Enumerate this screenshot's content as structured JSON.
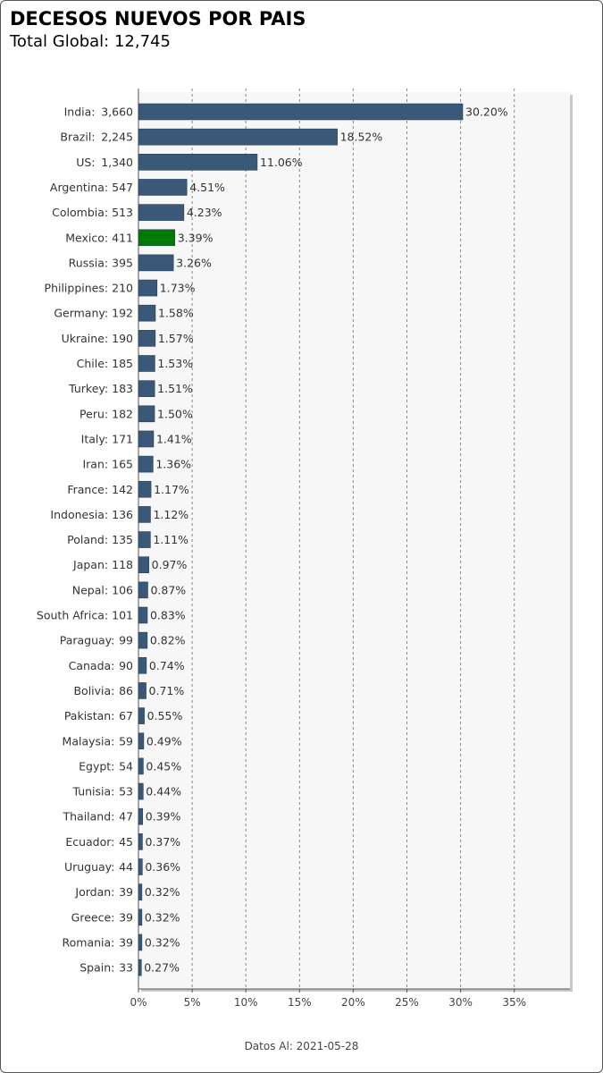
{
  "header": {
    "title": "DECESOS NUEVOS POR PAIS",
    "subtitle": "Total Global: 12,745"
  },
  "footer": {
    "text": "Datos Al: 2021-05-28"
  },
  "colors": {
    "bar": "#3a5878",
    "highlight": "#007a00",
    "plot_background": "#f7f7f7",
    "grid": "#888888"
  },
  "chart_data": {
    "type": "bar",
    "orientation": "horizontal",
    "highlight_category": "Mexico",
    "categories": [
      "India",
      "Brazil",
      "US",
      "Argentina",
      "Colombia",
      "Mexico",
      "Russia",
      "Philippines",
      "Germany",
      "Ukraine",
      "Chile",
      "Turkey",
      "Peru",
      "Italy",
      "Iran",
      "France",
      "Indonesia",
      "Poland",
      "Japan",
      "Nepal",
      "South Africa",
      "Paraguay",
      "Canada",
      "Bolivia",
      "Pakistan",
      "Malaysia",
      "Egypt",
      "Tunisia",
      "Thailand",
      "Ecuador",
      "Uruguay",
      "Jordan",
      "Greece",
      "Romania",
      "Spain"
    ],
    "category_labels": [
      "India:",
      "Brazil:",
      "US:",
      "Argentina:",
      "Colombia:",
      "Mexico:",
      "Russia:",
      "Philippines:",
      "Germany:",
      "Ukraine:",
      "Chile:",
      "Turkey:",
      "Peru:",
      "Italy:",
      "Iran:",
      "France:",
      "Indonesia:",
      "Poland:",
      "Japan:",
      "Nepal:",
      "South Africa:",
      "Paraguay:",
      "Canada:",
      "Bolivia:",
      "Pakistan:",
      "Malaysia:",
      "Egypt:",
      "Tunisia:",
      "Thailand:",
      "Ecuador:",
      "Uruguay:",
      "Jordan:",
      "Greece:",
      "Romania:",
      "Spain:"
    ],
    "counts": [
      "3,660",
      "2,245",
      "1,340",
      "547",
      "513",
      "411",
      "395",
      "210",
      "192",
      "190",
      "185",
      "183",
      "182",
      "171",
      "165",
      "142",
      "136",
      "135",
      "118",
      "106",
      "101",
      "99",
      "90",
      "86",
      "67",
      "59",
      "54",
      "53",
      "47",
      "45",
      "44",
      "39",
      "39",
      "39",
      "33"
    ],
    "values": [
      30.2,
      18.52,
      11.06,
      4.51,
      4.23,
      3.39,
      3.26,
      1.73,
      1.58,
      1.57,
      1.53,
      1.51,
      1.5,
      1.41,
      1.36,
      1.17,
      1.12,
      1.11,
      0.97,
      0.87,
      0.83,
      0.82,
      0.74,
      0.71,
      0.55,
      0.49,
      0.45,
      0.44,
      0.39,
      0.37,
      0.36,
      0.32,
      0.32,
      0.32,
      0.27
    ],
    "value_labels": [
      "30.20%",
      "18.52%",
      "11.06%",
      "4.51%",
      "4.23%",
      "3.39%",
      "3.26%",
      "1.73%",
      "1.58%",
      "1.57%",
      "1.53%",
      "1.51%",
      "1.50%",
      "1.41%",
      "1.36%",
      "1.17%",
      "1.12%",
      "1.11%",
      "0.97%",
      "0.87%",
      "0.83%",
      "0.82%",
      "0.74%",
      "0.71%",
      "0.55%",
      "0.49%",
      "0.45%",
      "0.44%",
      "0.39%",
      "0.37%",
      "0.36%",
      "0.32%",
      "0.32%",
      "0.32%",
      "0.27%"
    ],
    "xlim": [
      0,
      40
    ],
    "x_ticks": [
      0,
      5,
      10,
      15,
      20,
      25,
      30,
      35
    ],
    "x_tick_labels": [
      "0%",
      "5%",
      "10%",
      "15%",
      "20%",
      "25%",
      "30%",
      "35%"
    ],
    "grid": true,
    "legend": "none"
  }
}
